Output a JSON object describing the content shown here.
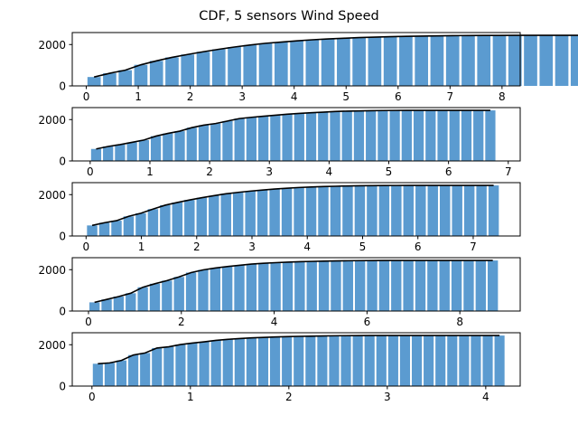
{
  "figure": {
    "title": "CDF, 5 sensors Wind Speed"
  },
  "chart_data": [
    {
      "type": "bar",
      "bar_color": "#5b9bd0",
      "line_color": "#000000",
      "bin_width": 0.3,
      "x_start": 0.15,
      "values": [
        430,
        610,
        760,
        1020,
        1210,
        1380,
        1520,
        1650,
        1770,
        1880,
        1975,
        2060,
        2120,
        2180,
        2230,
        2270,
        2305,
        2335,
        2360,
        2380,
        2395,
        2410,
        2420,
        2430,
        2435,
        2440,
        2442,
        2444,
        2445,
        2445,
        2445,
        2445,
        2445,
        2445,
        2445,
        2445
      ],
      "xlim": [
        -0.27,
        8.35
      ],
      "ylim": [
        0,
        2580
      ],
      "xticks": [
        0,
        1,
        2,
        3,
        4,
        5,
        6,
        7,
        8
      ],
      "yticks": [
        0,
        2000
      ],
      "xlabel": "",
      "ylabel": ""
    },
    {
      "type": "bar",
      "bar_color": "#5b9bd0",
      "line_color": "#000000",
      "bin_width": 0.2,
      "x_start": 0.1,
      "values": [
        580,
        700,
        790,
        900,
        1010,
        1200,
        1330,
        1440,
        1610,
        1730,
        1810,
        1930,
        2050,
        2110,
        2160,
        2210,
        2260,
        2300,
        2330,
        2360,
        2390,
        2410,
        2420,
        2430,
        2438,
        2443,
        2445,
        2445,
        2445,
        2445,
        2445,
        2445,
        2445,
        2445
      ],
      "xlim": [
        -0.3,
        7.2
      ],
      "ylim": [
        0,
        2580
      ],
      "xticks": [
        0,
        1,
        2,
        3,
        4,
        5,
        6,
        7
      ],
      "yticks": [
        0,
        2000
      ],
      "xlabel": "",
      "ylabel": ""
    },
    {
      "type": "bar",
      "bar_color": "#5b9bd0",
      "line_color": "#000000",
      "bin_width": 0.22,
      "x_start": 0.11,
      "values": [
        510,
        640,
        740,
        950,
        1100,
        1300,
        1490,
        1620,
        1740,
        1850,
        1950,
        2040,
        2110,
        2170,
        2220,
        2270,
        2310,
        2345,
        2370,
        2390,
        2405,
        2420,
        2430,
        2435,
        2440,
        2443,
        2445,
        2445,
        2445,
        2445,
        2445,
        2445,
        2445,
        2445
      ],
      "xlim": [
        -0.25,
        7.85
      ],
      "ylim": [
        0,
        2580
      ],
      "xticks": [
        0,
        1,
        2,
        3,
        4,
        5,
        6,
        7
      ],
      "yticks": [
        0,
        2000
      ],
      "xlabel": "",
      "ylabel": ""
    },
    {
      "type": "bar",
      "bar_color": "#5b9bd0",
      "line_color": "#000000",
      "bin_width": 0.26,
      "x_start": 0.13,
      "values": [
        420,
        560,
        700,
        860,
        1150,
        1320,
        1470,
        1650,
        1860,
        1990,
        2080,
        2150,
        2210,
        2270,
        2310,
        2340,
        2365,
        2385,
        2400,
        2415,
        2425,
        2432,
        2438,
        2442,
        2444,
        2445,
        2445,
        2445,
        2445,
        2445,
        2445,
        2445,
        2445,
        2445
      ],
      "xlim": [
        -0.35,
        9.3
      ],
      "ylim": [
        0,
        2580
      ],
      "xticks": [
        0,
        2,
        4,
        6,
        8
      ],
      "yticks": [
        0,
        2000
      ],
      "xlabel": "",
      "ylabel": ""
    },
    {
      "type": "bar",
      "bar_color": "#5b9bd0",
      "line_color": "#000000",
      "bin_width": 0.12,
      "x_start": 0.06,
      "values": [
        1080,
        1120,
        1240,
        1500,
        1600,
        1840,
        1900,
        2010,
        2080,
        2140,
        2210,
        2260,
        2300,
        2330,
        2355,
        2375,
        2390,
        2405,
        2415,
        2425,
        2432,
        2438,
        2442,
        2444,
        2445,
        2445,
        2445,
        2445,
        2445,
        2445,
        2445,
        2445,
        2445,
        2445,
        2445
      ],
      "xlim": [
        -0.2,
        4.35
      ],
      "ylim": [
        0,
        2580
      ],
      "xticks": [
        0,
        1,
        2,
        3,
        4
      ],
      "yticks": [
        0,
        2000
      ],
      "xlabel": "",
      "ylabel": ""
    }
  ]
}
